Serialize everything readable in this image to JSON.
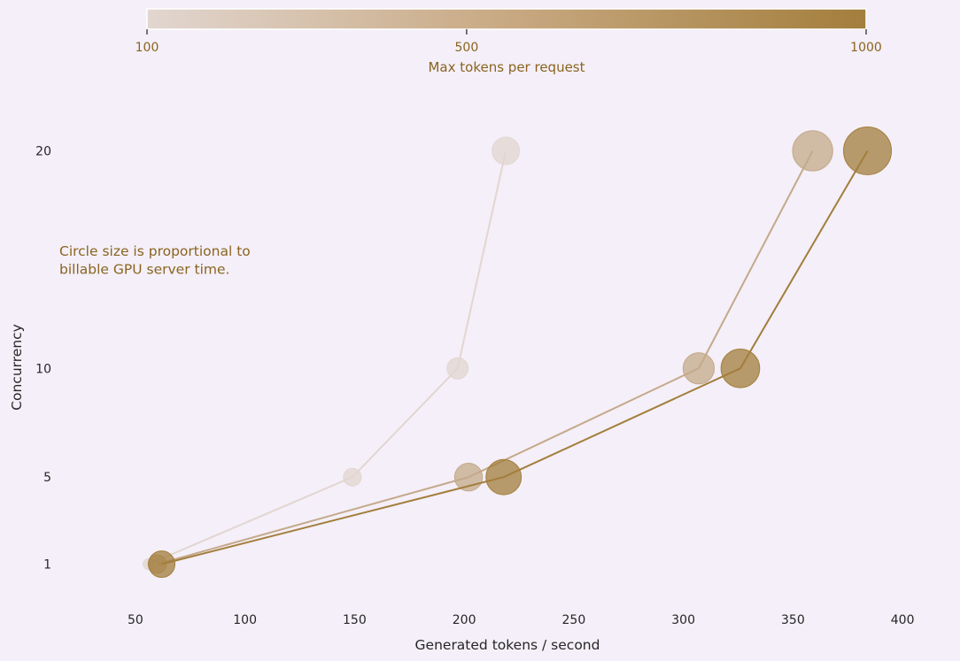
{
  "chart_data": {
    "type": "scatter",
    "xlabel": "Generated tokens / second",
    "ylabel": "Concurrency",
    "xlim": [
      25,
      425
    ],
    "ylim": [
      -1.5,
      22.5
    ],
    "x_ticks": [
      50,
      100,
      150,
      200,
      250,
      300,
      350,
      400
    ],
    "y_ticks": [
      1,
      5,
      10,
      20
    ],
    "annotation": "Circle size is proportional to\nbillable GPU server time.",
    "colorbar": {
      "label": "Max tokens per request",
      "ticks": [
        100,
        500,
        1000
      ],
      "range": [
        100,
        1000
      ],
      "color_low": "#e2d6d0",
      "color_mid": "#c8a982",
      "color_high": "#a37e3c",
      "tick_text_color": "#8a6420"
    },
    "series": [
      {
        "max_tokens": 100,
        "color": "#e2d6d0",
        "points": [
          {
            "x": 56,
            "y": 1,
            "server_time": 0.3
          },
          {
            "x": 149,
            "y": 5,
            "server_time": 1.0
          },
          {
            "x": 197,
            "y": 10,
            "server_time": 1.5
          },
          {
            "x": 219,
            "y": 20,
            "server_time": 2.7
          }
        ]
      },
      {
        "max_tokens": 500,
        "color": "#c4a98a",
        "points": [
          {
            "x": 60,
            "y": 1,
            "server_time": 1.1
          },
          {
            "x": 202,
            "y": 5,
            "server_time": 2.8
          },
          {
            "x": 307,
            "y": 10,
            "server_time": 3.6
          },
          {
            "x": 359,
            "y": 20,
            "server_time": 6.2
          }
        ]
      },
      {
        "max_tokens": 1000,
        "color": "#a37e3c",
        "points": [
          {
            "x": 62,
            "y": 1,
            "server_time": 2.5
          },
          {
            "x": 218,
            "y": 5,
            "server_time": 4.7
          },
          {
            "x": 326,
            "y": 10,
            "server_time": 5.7
          },
          {
            "x": 384,
            "y": 20,
            "server_time": 9.0
          }
        ]
      }
    ]
  }
}
